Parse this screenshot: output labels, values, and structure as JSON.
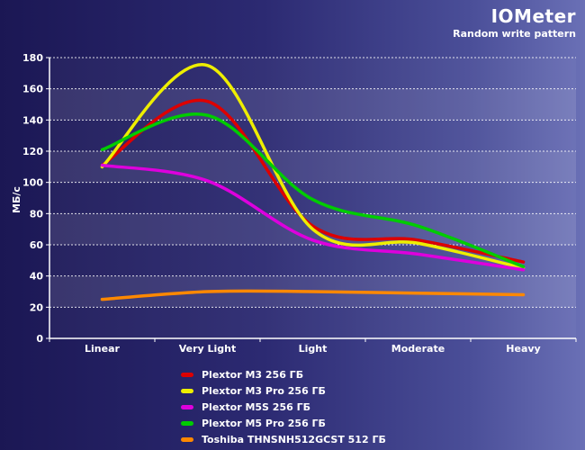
{
  "chart_data": {
    "type": "line",
    "title": "IOMeter",
    "subtitle": "Random write pattern",
    "xlabel": "",
    "ylabel": "МБ/с",
    "categories": [
      "Linear",
      "Very Light",
      "Light",
      "Moderate",
      "Heavy"
    ],
    "ylim": [
      0,
      180
    ],
    "yticks": [
      0,
      20,
      40,
      60,
      80,
      100,
      120,
      140,
      160,
      180
    ],
    "grid": true,
    "legend_position": "bottom",
    "series": [
      {
        "name": "Plextor M3 256 ГБ",
        "color": "#dd0000",
        "values": [
          111,
          152,
          72,
          63,
          49
        ]
      },
      {
        "name": "Plextor M3 Pro 256 ГБ",
        "color": "#eeee00",
        "values": [
          110,
          175,
          70,
          61,
          45
        ]
      },
      {
        "name": "Plextor M5S 256 ГБ",
        "color": "#dd00dd",
        "values": [
          111,
          101,
          63,
          54,
          44
        ]
      },
      {
        "name": "Plextor M5 Pro 256 ГБ",
        "color": "#00cc00",
        "values": [
          121,
          143,
          89,
          72,
          46
        ]
      },
      {
        "name": "Toshiba THNSNH512GCST 512 ГБ",
        "color": "#ff8800",
        "values": [
          25,
          30,
          30,
          29,
          28
        ]
      }
    ]
  }
}
